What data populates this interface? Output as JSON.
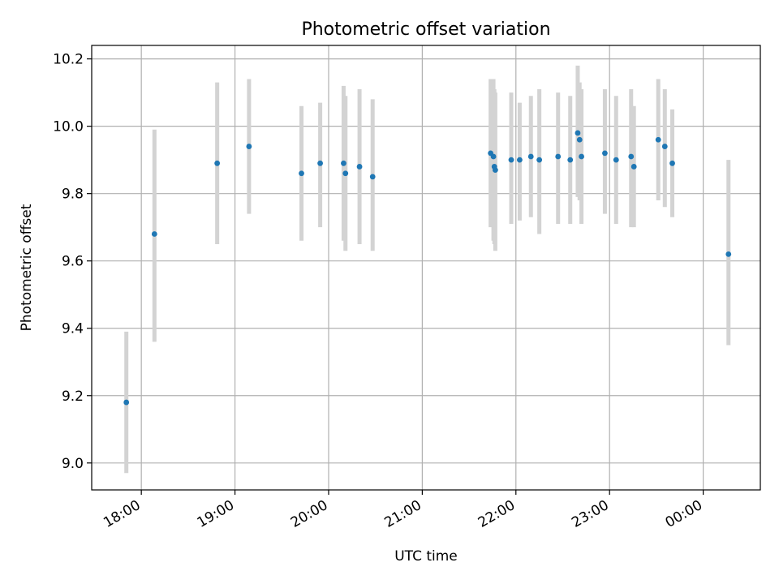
{
  "chart_data": {
    "type": "scatter",
    "title": "Photometric offset variation",
    "xlabel": "UTC time",
    "ylabel": "Photometric offset",
    "x_unit": "hours",
    "xlim": [
      17.47,
      24.61
    ],
    "ylim": [
      8.92,
      10.24
    ],
    "x_ticks": [
      {
        "value": 18,
        "label": "18:00"
      },
      {
        "value": 19,
        "label": "19:00"
      },
      {
        "value": 20,
        "label": "20:00"
      },
      {
        "value": 21,
        "label": "21:00"
      },
      {
        "value": 22,
        "label": "22:00"
      },
      {
        "value": 23,
        "label": "23:00"
      },
      {
        "value": 24,
        "label": "00:00"
      }
    ],
    "y_ticks": [
      {
        "value": 9.0,
        "label": "9.0"
      },
      {
        "value": 9.2,
        "label": "9.2"
      },
      {
        "value": 9.4,
        "label": "9.4"
      },
      {
        "value": 9.6,
        "label": "9.6"
      },
      {
        "value": 9.8,
        "label": "9.8"
      },
      {
        "value": 10.0,
        "label": "10.0"
      },
      {
        "value": 10.2,
        "label": "10.2"
      }
    ],
    "grid": true,
    "colors": {
      "marker": "#1f77b4",
      "errorbar": "#d3d3d3",
      "grid": "#b0b0b0"
    },
    "points": [
      {
        "x": 17.84,
        "y": 9.18,
        "low": 8.97,
        "high": 9.39
      },
      {
        "x": 18.14,
        "y": 9.68,
        "low": 9.36,
        "high": 9.99
      },
      {
        "x": 18.81,
        "y": 9.89,
        "low": 9.65,
        "high": 10.13
      },
      {
        "x": 19.15,
        "y": 9.94,
        "low": 9.74,
        "high": 10.14
      },
      {
        "x": 19.71,
        "y": 9.86,
        "low": 9.66,
        "high": 10.06
      },
      {
        "x": 19.91,
        "y": 9.89,
        "low": 9.7,
        "high": 10.07
      },
      {
        "x": 20.16,
        "y": 9.89,
        "low": 9.66,
        "high": 10.12
      },
      {
        "x": 20.18,
        "y": 9.86,
        "low": 9.63,
        "high": 10.09
      },
      {
        "x": 20.33,
        "y": 9.88,
        "low": 9.65,
        "high": 10.11
      },
      {
        "x": 20.47,
        "y": 9.85,
        "low": 9.63,
        "high": 10.08
      },
      {
        "x": 21.73,
        "y": 9.92,
        "low": 9.7,
        "high": 10.14
      },
      {
        "x": 21.76,
        "y": 9.91,
        "low": 9.66,
        "high": 10.14
      },
      {
        "x": 21.77,
        "y": 9.88,
        "low": 9.65,
        "high": 10.11
      },
      {
        "x": 21.78,
        "y": 9.87,
        "low": 9.63,
        "high": 10.1
      },
      {
        "x": 21.95,
        "y": 9.9,
        "low": 9.71,
        "high": 10.1
      },
      {
        "x": 22.04,
        "y": 9.9,
        "low": 9.72,
        "high": 10.07
      },
      {
        "x": 22.16,
        "y": 9.91,
        "low": 9.73,
        "high": 10.09
      },
      {
        "x": 22.25,
        "y": 9.9,
        "low": 9.68,
        "high": 10.11
      },
      {
        "x": 22.45,
        "y": 9.91,
        "low": 9.71,
        "high": 10.1
      },
      {
        "x": 22.58,
        "y": 9.9,
        "low": 9.71,
        "high": 10.09
      },
      {
        "x": 22.66,
        "y": 9.98,
        "low": 9.79,
        "high": 10.18
      },
      {
        "x": 22.68,
        "y": 9.96,
        "low": 9.78,
        "high": 10.13
      },
      {
        "x": 22.7,
        "y": 9.91,
        "low": 9.71,
        "high": 10.11
      },
      {
        "x": 22.95,
        "y": 9.92,
        "low": 9.74,
        "high": 10.11
      },
      {
        "x": 23.07,
        "y": 9.9,
        "low": 9.71,
        "high": 10.09
      },
      {
        "x": 23.23,
        "y": 9.91,
        "low": 9.7,
        "high": 10.11
      },
      {
        "x": 23.26,
        "y": 9.88,
        "low": 9.7,
        "high": 10.06
      },
      {
        "x": 23.52,
        "y": 9.96,
        "low": 9.78,
        "high": 10.14
      },
      {
        "x": 23.59,
        "y": 9.94,
        "low": 9.76,
        "high": 10.11
      },
      {
        "x": 23.67,
        "y": 9.89,
        "low": 9.73,
        "high": 10.05
      },
      {
        "x": 24.27,
        "y": 9.62,
        "low": 9.35,
        "high": 9.9
      }
    ]
  }
}
